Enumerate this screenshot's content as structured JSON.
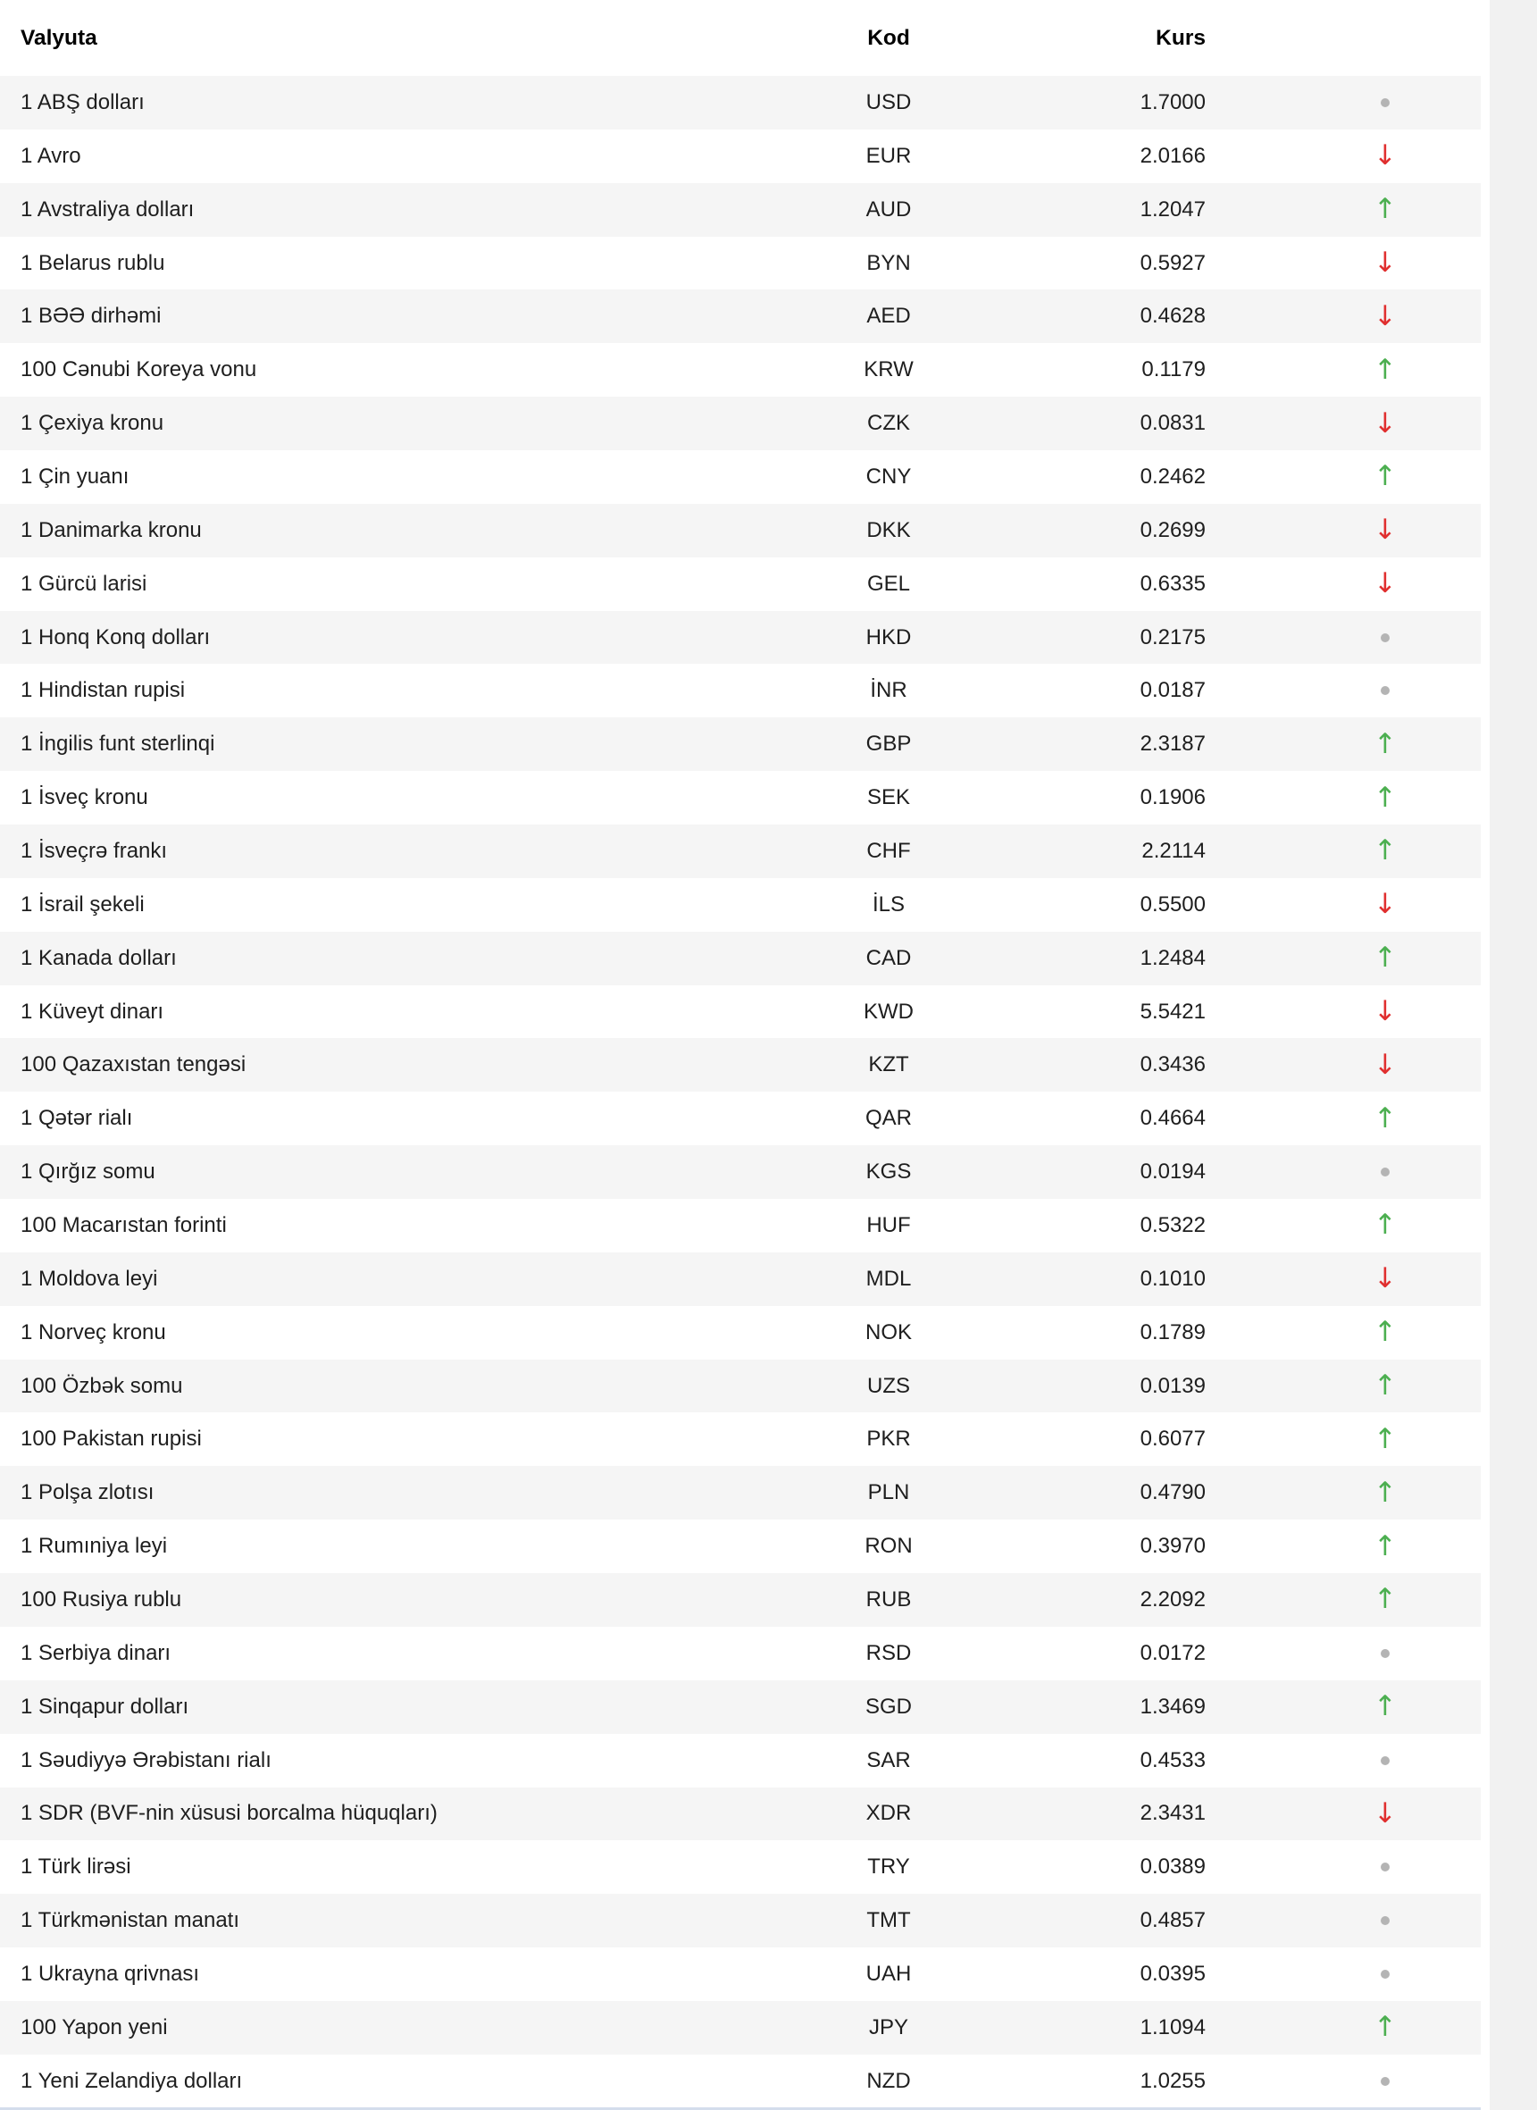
{
  "table": {
    "columns": [
      {
        "key": "currency",
        "label": "Valyuta"
      },
      {
        "key": "code",
        "label": "Kod"
      },
      {
        "key": "rate",
        "label": "Kurs"
      },
      {
        "key": "trend",
        "label": ""
      }
    ],
    "rows": [
      {
        "currency": "1 ABŞ dolları",
        "code": "USD",
        "rate": "1.7000",
        "trend": "flat"
      },
      {
        "currency": "1 Avro",
        "code": "EUR",
        "rate": "2.0166",
        "trend": "down"
      },
      {
        "currency": "1 Avstraliya dolları",
        "code": "AUD",
        "rate": "1.2047",
        "trend": "up"
      },
      {
        "currency": "1 Belarus rublu",
        "code": "BYN",
        "rate": "0.5927",
        "trend": "down"
      },
      {
        "currency": "1 BƏƏ dirhəmi",
        "code": "AED",
        "rate": "0.4628",
        "trend": "down"
      },
      {
        "currency": "100 Cənubi Koreya vonu",
        "code": "KRW",
        "rate": "0.1179",
        "trend": "up"
      },
      {
        "currency": "1 Çexiya kronu",
        "code": "CZK",
        "rate": "0.0831",
        "trend": "down"
      },
      {
        "currency": "1 Çin yuanı",
        "code": "CNY",
        "rate": "0.2462",
        "trend": "up"
      },
      {
        "currency": "1 Danimarka kronu",
        "code": "DKK",
        "rate": "0.2699",
        "trend": "down"
      },
      {
        "currency": "1 Gürcü larisi",
        "code": "GEL",
        "rate": "0.6335",
        "trend": "down"
      },
      {
        "currency": "1 Honq Konq dolları",
        "code": "HKD",
        "rate": "0.2175",
        "trend": "flat"
      },
      {
        "currency": "1 Hindistan rupisi",
        "code": "İNR",
        "rate": "0.0187",
        "trend": "flat"
      },
      {
        "currency": "1 İngilis funt sterlinqi",
        "code": "GBP",
        "rate": "2.3187",
        "trend": "up"
      },
      {
        "currency": "1 İsveç kronu",
        "code": "SEK",
        "rate": "0.1906",
        "trend": "up"
      },
      {
        "currency": "1 İsveçrə frankı",
        "code": "CHF",
        "rate": "2.2114",
        "trend": "up"
      },
      {
        "currency": "1 İsrail şekeli",
        "code": "İLS",
        "rate": "0.5500",
        "trend": "down"
      },
      {
        "currency": "1 Kanada dolları",
        "code": "CAD",
        "rate": "1.2484",
        "trend": "up"
      },
      {
        "currency": "1 Küveyt dinarı",
        "code": "KWD",
        "rate": "5.5421",
        "trend": "down"
      },
      {
        "currency": "100 Qazaxıstan tengəsi",
        "code": "KZT",
        "rate": "0.3436",
        "trend": "down"
      },
      {
        "currency": "1 Qətər rialı",
        "code": "QAR",
        "rate": "0.4664",
        "trend": "up"
      },
      {
        "currency": "1 Qırğız somu",
        "code": "KGS",
        "rate": "0.0194",
        "trend": "flat"
      },
      {
        "currency": "100 Macarıstan forinti",
        "code": "HUF",
        "rate": "0.5322",
        "trend": "up"
      },
      {
        "currency": "1 Moldova leyi",
        "code": "MDL",
        "rate": "0.1010",
        "trend": "down"
      },
      {
        "currency": "1 Norveç kronu",
        "code": "NOK",
        "rate": "0.1789",
        "trend": "up"
      },
      {
        "currency": "100 Özbək somu",
        "code": "UZS",
        "rate": "0.0139",
        "trend": "up"
      },
      {
        "currency": "100 Pakistan rupisi",
        "code": "PKR",
        "rate": "0.6077",
        "trend": "up"
      },
      {
        "currency": "1 Polşa zlotısı",
        "code": "PLN",
        "rate": "0.4790",
        "trend": "up"
      },
      {
        "currency": "1 Rumıniya leyi",
        "code": "RON",
        "rate": "0.3970",
        "trend": "up"
      },
      {
        "currency": "100 Rusiya rublu",
        "code": "RUB",
        "rate": "2.2092",
        "trend": "up"
      },
      {
        "currency": "1 Serbiya dinarı",
        "code": "RSD",
        "rate": "0.0172",
        "trend": "flat"
      },
      {
        "currency": "1 Sinqapur dolları",
        "code": "SGD",
        "rate": "1.3469",
        "trend": "up"
      },
      {
        "currency": "1 Səudiyyə Ərəbistanı rialı",
        "code": "SAR",
        "rate": "0.4533",
        "trend": "flat"
      },
      {
        "currency": "1 SDR (BVF-nin xüsusi borcalma hüquqları)",
        "code": "XDR",
        "rate": "2.3431",
        "trend": "down"
      },
      {
        "currency": "1 Türk lirəsi",
        "code": "TRY",
        "rate": "0.0389",
        "trend": "flat"
      },
      {
        "currency": "1 Türkmənistan manatı",
        "code": "TMT",
        "rate": "0.4857",
        "trend": "flat"
      },
      {
        "currency": "1 Ukrayna qrivnası",
        "code": "UAH",
        "rate": "0.0395",
        "trend": "flat"
      },
      {
        "currency": "100 Yapon yeni",
        "code": "JPY",
        "rate": "1.1094",
        "trend": "up"
      },
      {
        "currency": "1 Yeni Zelandiya dolları",
        "code": "NZD",
        "rate": "1.0255",
        "trend": "flat"
      }
    ]
  },
  "icons": {
    "up_arrow": "↑",
    "down_arrow": "↓",
    "flat_dot": "dot"
  },
  "colors": {
    "up": "#4caf50",
    "down": "#e02f2f",
    "flat": "#b4b4b4",
    "stripe": "#f5f5f5",
    "scrollbar_track": "#f1f1f1"
  }
}
